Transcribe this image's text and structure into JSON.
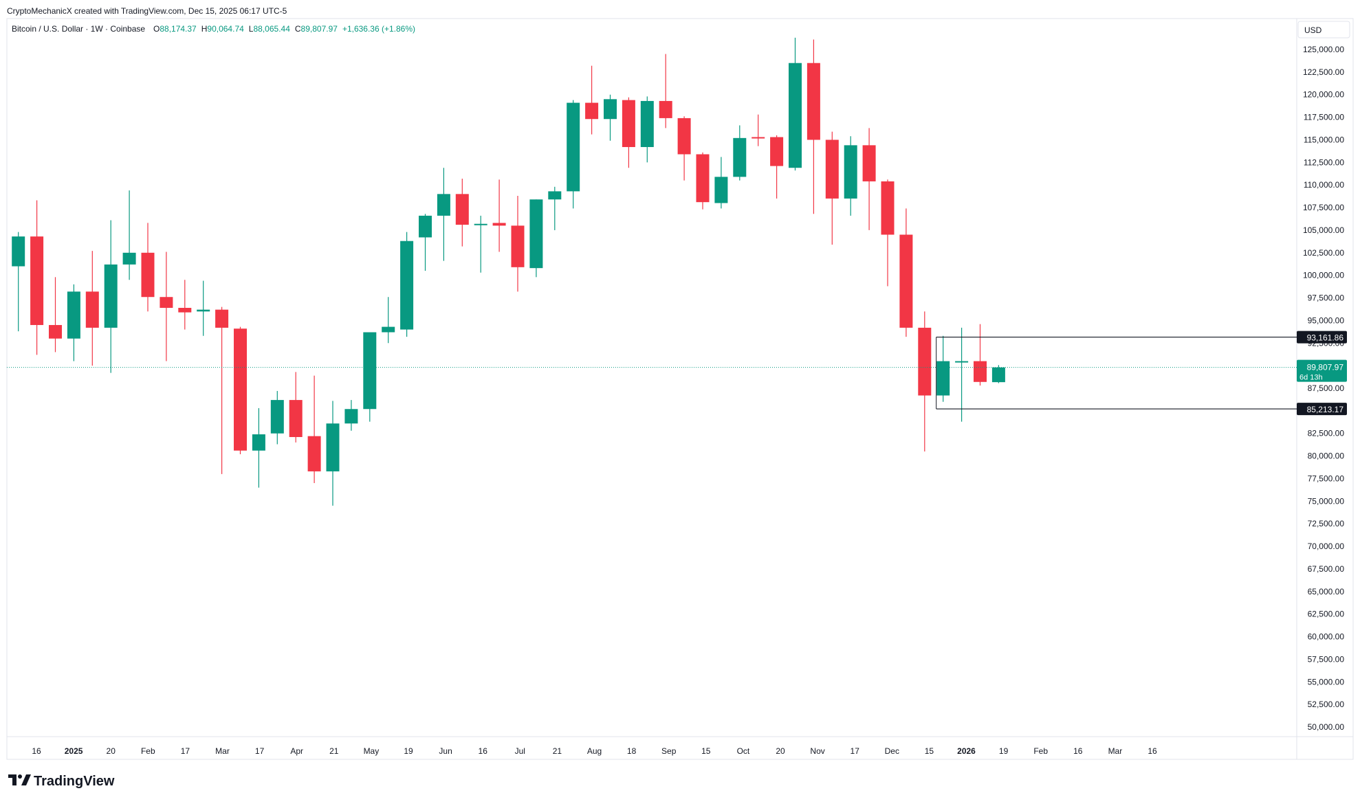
{
  "header": {
    "credit": "CryptoMechanicX created with TradingView.com, Dec 15, 2025 06:17 UTC-5",
    "symbol": "Bitcoin / U.S. Dollar · 1W · Coinbase",
    "ohlc": {
      "o_label": "O",
      "o_value": "88,174.37",
      "h_label": "H",
      "h_value": "90,064.74",
      "l_label": "L",
      "l_value": "88,065.44",
      "c_label": "C",
      "c_value": "89,807.97",
      "change": "+1,636.36 (+1.86%)"
    }
  },
  "currency_button": "USD",
  "footer_logo": "TradingView",
  "price_labels": {
    "upper_level": "93,161.86",
    "last_price": "89,807.97",
    "countdown": "6d 13h",
    "lower_level": "85,213.17"
  },
  "colors": {
    "up": "#089981",
    "down": "#f23645",
    "text": "#131722",
    "grid_text": "#131722"
  },
  "chart_data": {
    "type": "candlestick",
    "timeframe": "1W",
    "symbol": "BTCUSD",
    "y_axis": {
      "ticks": [
        "125,000.00",
        "122,500.00",
        "120,000.00",
        "117,500.00",
        "115,000.00",
        "112,500.00",
        "110,000.00",
        "107,500.00",
        "105,000.00",
        "102,500.00",
        "100,000.00",
        "97,500.00",
        "95,000.00",
        "92,500.00",
        "90,000.00",
        "87,500.00",
        "85,000.00",
        "82,500.00",
        "80,000.00",
        "77,500.00",
        "75,000.00",
        "72,500.00",
        "70,000.00",
        "67,500.00",
        "65,000.00",
        "62,500.00",
        "60,000.00",
        "57,500.00",
        "55,000.00",
        "52,500.00",
        "50,000.00"
      ],
      "range": [
        49000,
        126600
      ]
    },
    "x_axis": {
      "labels": [
        "16",
        "2025",
        "20",
        "Feb",
        "17",
        "Mar",
        "17",
        "Apr",
        "21",
        "May",
        "19",
        "Jun",
        "16",
        "Jul",
        "21",
        "Aug",
        "18",
        "Sep",
        "15",
        "Oct",
        "20",
        "Nov",
        "17",
        "Dec",
        "15",
        "2026",
        "19",
        "Feb",
        "16",
        "Mar",
        "16"
      ],
      "bold": [
        "2025",
        "2026"
      ]
    },
    "candles": [
      {
        "o": 101000,
        "h": 104800,
        "l": 93800,
        "c": 104300
      },
      {
        "o": 104300,
        "h": 108300,
        "l": 91200,
        "c": 94500
      },
      {
        "o": 94500,
        "h": 99800,
        "l": 91500,
        "c": 93000
      },
      {
        "o": 93000,
        "h": 99000,
        "l": 90500,
        "c": 98200
      },
      {
        "o": 98200,
        "h": 102700,
        "l": 90000,
        "c": 94200
      },
      {
        "o": 94200,
        "h": 106100,
        "l": 89200,
        "c": 101200
      },
      {
        "o": 101200,
        "h": 109400,
        "l": 99500,
        "c": 102500
      },
      {
        "o": 102500,
        "h": 105800,
        "l": 96000,
        "c": 97600
      },
      {
        "o": 97600,
        "h": 102600,
        "l": 90500,
        "c": 96400
      },
      {
        "o": 96400,
        "h": 99500,
        "l": 94000,
        "c": 95900
      },
      {
        "o": 96000,
        "h": 99400,
        "l": 93300,
        "c": 96200
      },
      {
        "o": 96200,
        "h": 96500,
        "l": 78000,
        "c": 94200
      },
      {
        "o": 94100,
        "h": 94300,
        "l": 80200,
        "c": 80600
      },
      {
        "o": 80600,
        "h": 85300,
        "l": 76500,
        "c": 82400
      },
      {
        "o": 82500,
        "h": 87200,
        "l": 81300,
        "c": 86200
      },
      {
        "o": 86200,
        "h": 89300,
        "l": 81500,
        "c": 82100
      },
      {
        "o": 82200,
        "h": 88900,
        "l": 77000,
        "c": 78300
      },
      {
        "o": 78300,
        "h": 86100,
        "l": 74500,
        "c": 83600
      },
      {
        "o": 83600,
        "h": 86200,
        "l": 82800,
        "c": 85200
      },
      {
        "o": 85200,
        "h": 93300,
        "l": 83800,
        "c": 93700
      },
      {
        "o": 93700,
        "h": 97600,
        "l": 92500,
        "c": 94300
      },
      {
        "o": 94000,
        "h": 104800,
        "l": 93200,
        "c": 103800
      },
      {
        "o": 104200,
        "h": 106800,
        "l": 100500,
        "c": 106600
      },
      {
        "o": 106600,
        "h": 111900,
        "l": 101600,
        "c": 109000
      },
      {
        "o": 109000,
        "h": 110700,
        "l": 103200,
        "c": 105600
      },
      {
        "o": 105600,
        "h": 106600,
        "l": 100300,
        "c": 105700
      },
      {
        "o": 105800,
        "h": 110600,
        "l": 102600,
        "c": 105500
      },
      {
        "o": 105500,
        "h": 108800,
        "l": 98200,
        "c": 100900
      },
      {
        "o": 100800,
        "h": 108400,
        "l": 99800,
        "c": 108400
      },
      {
        "o": 108400,
        "h": 109800,
        "l": 105000,
        "c": 109300
      },
      {
        "o": 109300,
        "h": 119400,
        "l": 107400,
        "c": 119100
      },
      {
        "o": 119100,
        "h": 123200,
        "l": 115600,
        "c": 117300
      },
      {
        "o": 117300,
        "h": 120000,
        "l": 114900,
        "c": 119500
      },
      {
        "o": 119400,
        "h": 119700,
        "l": 111900,
        "c": 114200
      },
      {
        "o": 114200,
        "h": 119800,
        "l": 112500,
        "c": 119300
      },
      {
        "o": 119300,
        "h": 124500,
        "l": 116300,
        "c": 117400
      },
      {
        "o": 117400,
        "h": 117600,
        "l": 110500,
        "c": 113400
      },
      {
        "o": 113400,
        "h": 113600,
        "l": 107300,
        "c": 108100
      },
      {
        "o": 108000,
        "h": 113100,
        "l": 107400,
        "c": 110900
      },
      {
        "o": 110900,
        "h": 116600,
        "l": 110500,
        "c": 115200
      },
      {
        "o": 115300,
        "h": 117800,
        "l": 114300,
        "c": 115200
      },
      {
        "o": 115300,
        "h": 115500,
        "l": 108500,
        "c": 112100
      },
      {
        "o": 111900,
        "h": 126300,
        "l": 111600,
        "c": 123500
      },
      {
        "o": 123500,
        "h": 126100,
        "l": 106800,
        "c": 115000
      },
      {
        "o": 115000,
        "h": 115900,
        "l": 103400,
        "c": 108500
      },
      {
        "o": 108500,
        "h": 115400,
        "l": 106600,
        "c": 114400
      },
      {
        "o": 114400,
        "h": 116300,
        "l": 105000,
        "c": 110400
      },
      {
        "o": 110400,
        "h": 110600,
        "l": 98800,
        "c": 104500
      },
      {
        "o": 104500,
        "h": 107400,
        "l": 93200,
        "c": 94200
      },
      {
        "o": 94200,
        "h": 96000,
        "l": 80500,
        "c": 86700
      },
      {
        "o": 86700,
        "h": 93300,
        "l": 86000,
        "c": 90500
      },
      {
        "o": 90500,
        "h": 94200,
        "l": 83800,
        "c": 90500
      },
      {
        "o": 90500,
        "h": 94600,
        "l": 87800,
        "c": 88200
      },
      {
        "o": 88174,
        "h": 90065,
        "l": 88065,
        "c": 89808
      }
    ],
    "levels": [
      {
        "label": "93,161.86",
        "value": 93161.86
      },
      {
        "label": "85,213.17",
        "value": 85213.17
      }
    ],
    "last_price": 89807.97,
    "legend": "none",
    "grid": false
  }
}
